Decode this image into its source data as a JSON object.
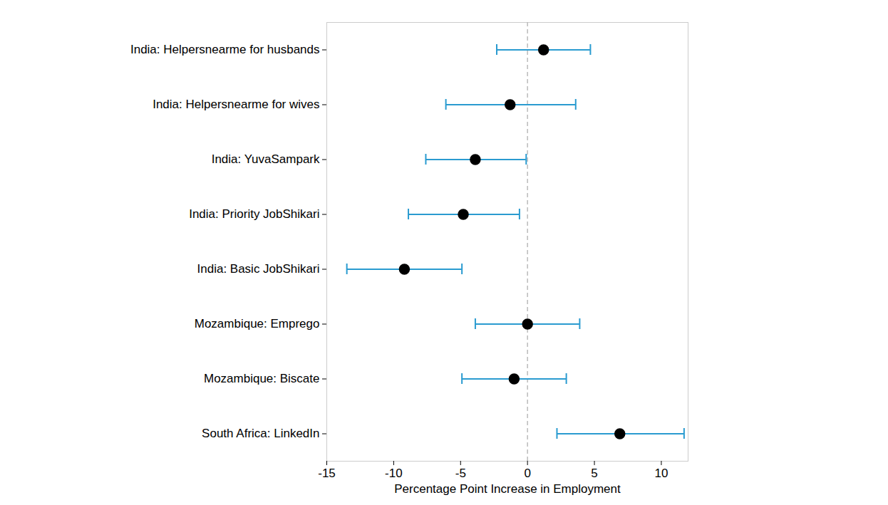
{
  "chart_data": {
    "type": "dot",
    "orientation": "horizontal",
    "categories": [
      "India: Helpersnearme for husbands",
      "India: Helpersnearme for wives",
      "India: YuvaSampark",
      "India: Priority JobShikari",
      "India: Basic JobShikari",
      "Mozambique: Emprego",
      "Mozambique: Biscate",
      "South Africa: LinkedIn"
    ],
    "values": [
      1.2,
      -1.3,
      -3.9,
      -4.8,
      -9.2,
      0.0,
      -1.0,
      6.9
    ],
    "error_low": [
      -2.3,
      -6.1,
      -7.6,
      -8.9,
      -13.5,
      -3.9,
      -4.9,
      2.2
    ],
    "error_high": [
      4.7,
      3.6,
      -0.1,
      -0.6,
      -4.9,
      3.9,
      2.9,
      11.7
    ],
    "color": "#000000",
    "reference_line": 0,
    "x_label": "Percentage Point Increase in Employment",
    "xlim": [
      -15,
      12
    ],
    "xticks": [
      -15,
      -10,
      -5,
      0,
      5,
      10
    ],
    "grid": false
  }
}
